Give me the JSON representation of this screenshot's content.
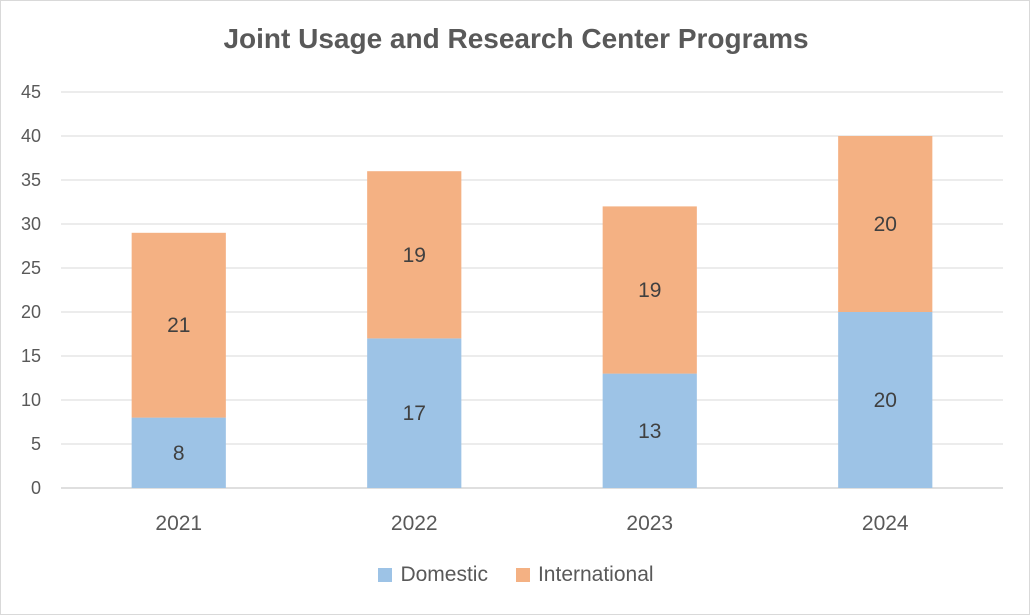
{
  "chart_data": {
    "type": "bar",
    "stacked": true,
    "title": "Joint Usage and Research Center Programs",
    "categories": [
      "2021",
      "2022",
      "2023",
      "2024"
    ],
    "series": [
      {
        "name": "Domestic",
        "values": [
          8,
          17,
          13,
          20
        ],
        "color": "#9dc3e6"
      },
      {
        "name": "International",
        "values": [
          21,
          19,
          19,
          20
        ],
        "color": "#f4b183"
      }
    ],
    "ylim": [
      0,
      45
    ],
    "yticks": [
      0,
      5,
      10,
      15,
      20,
      25,
      30,
      35,
      40,
      45
    ],
    "grid": true,
    "legend": "bottom"
  }
}
